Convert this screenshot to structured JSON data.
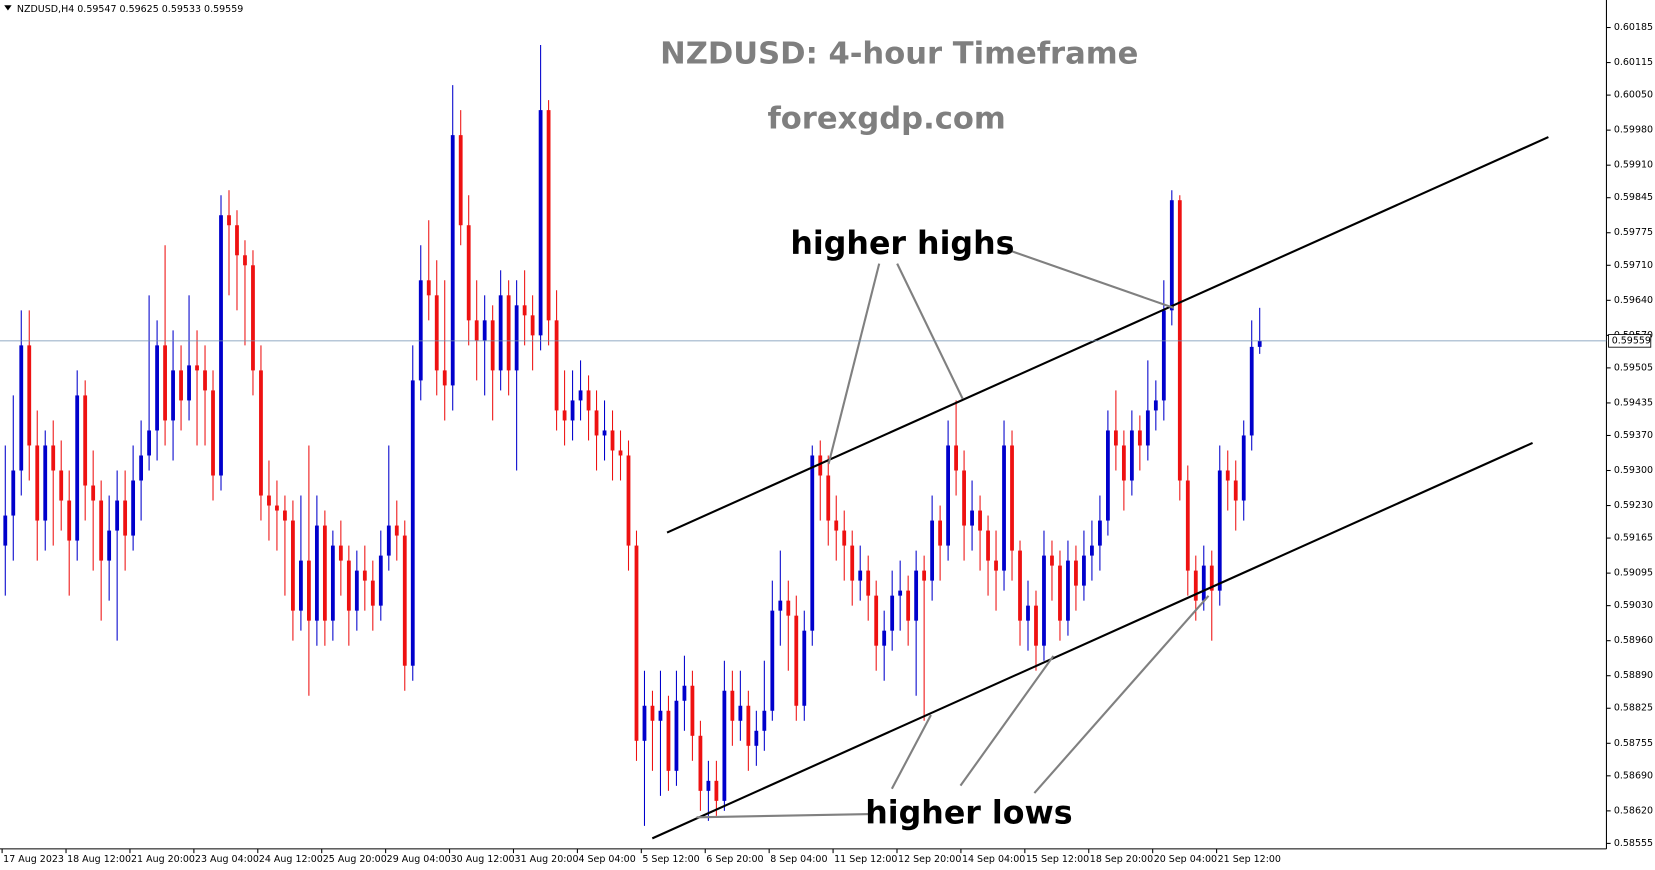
{
  "chart_data": {
    "type": "candlestick",
    "header": "NZDUSD,H4 0.59547 0.59625 0.59533 0.59559",
    "title": "NZDUSD: 4-hour Timeframe",
    "subtitle": "forexgdp.com",
    "annotations": [
      "higher highs",
      "higher lows"
    ],
    "up_color": "#0000cc",
    "down_color": "#ee1111",
    "ylim": [
      0.58544,
      0.6024
    ],
    "yticks": [
      0.60185,
      0.60115,
      {
        "value": 0.6005,
        "label": "0.60050"
      },
      {
        "value": 0.5998,
        "label": "0.59980"
      },
      {
        "value": 0.5991,
        "label": "0.59910"
      },
      0.59845,
      0.59775,
      {
        "value": 0.5971,
        "label": "0.59710"
      },
      {
        "value": 0.5964,
        "label": "0.59640"
      },
      {
        "value": 0.5957,
        "label": "0.59570"
      },
      0.59505,
      0.59435,
      {
        "value": 0.5937,
        "label": "0.59370"
      },
      {
        "value": 0.593,
        "label": "0.59300"
      },
      {
        "value": 0.5923,
        "label": "0.59230"
      },
      0.59165,
      0.59095,
      {
        "value": 0.5903,
        "label": "0.59030"
      },
      {
        "value": 0.5896,
        "label": "0.58960"
      },
      {
        "value": 0.5889,
        "label": "0.58890"
      },
      0.58825,
      0.58755,
      {
        "value": 0.5869,
        "label": "0.58690"
      },
      {
        "value": 0.5862,
        "label": "0.58620"
      },
      0.58555
    ],
    "current_price": 0.59559,
    "categories": [
      "17 Aug 2023",
      null,
      null,
      null,
      null,
      null,
      null,
      null,
      "18 Aug 12:00",
      null,
      null,
      null,
      null,
      null,
      null,
      null,
      "21 Aug 20:00",
      null,
      null,
      null,
      null,
      null,
      null,
      null,
      "23 Aug 04:00",
      null,
      null,
      null,
      null,
      null,
      null,
      null,
      "24 Aug 12:00",
      null,
      null,
      null,
      null,
      null,
      null,
      null,
      "25 Aug 20:00",
      null,
      null,
      null,
      null,
      null,
      null,
      null,
      "29 Aug 04:00",
      null,
      null,
      null,
      null,
      null,
      null,
      null,
      "30 Aug 12:00",
      null,
      null,
      null,
      null,
      null,
      null,
      null,
      "31 Aug 20:00",
      null,
      null,
      null,
      null,
      null,
      null,
      null,
      "4 Sep 04:00",
      null,
      null,
      null,
      null,
      null,
      null,
      null,
      "5 Sep 12:00",
      null,
      null,
      null,
      null,
      null,
      null,
      null,
      "6 Sep 20:00",
      null,
      null,
      null,
      null,
      null,
      null,
      null,
      "8 Sep 04:00",
      null,
      null,
      null,
      null,
      null,
      null,
      null,
      "11 Sep 12:00",
      null,
      null,
      null,
      null,
      null,
      null,
      null,
      "12 Sep 20:00",
      null,
      null,
      null,
      null,
      null,
      null,
      null,
      "14 Sep 04:00",
      null,
      null,
      null,
      null,
      null,
      null,
      null,
      "15 Sep 12:00",
      null,
      null,
      null,
      null,
      null,
      null,
      null,
      "18 Sep 20:00",
      null,
      null,
      null,
      null,
      null,
      null,
      null,
      "20 Sep 04:00",
      null,
      null,
      null,
      null,
      null,
      null,
      null,
      "21 Sep 12:00",
      null,
      null,
      null,
      null,
      null
    ],
    "candles": [
      [
        0.5915,
        0.5935,
        0.5905,
        0.5921
      ],
      [
        0.5921,
        0.5945,
        0.5912,
        0.593
      ],
      [
        0.593,
        0.5962,
        0.5925,
        0.5955
      ],
      [
        0.5955,
        0.5962,
        0.5928,
        0.5935
      ],
      [
        0.5935,
        0.5942,
        0.5912,
        0.592
      ],
      [
        0.592,
        0.5938,
        0.5914,
        0.5935
      ],
      [
        0.5935,
        0.594,
        0.5915,
        0.593
      ],
      [
        0.593,
        0.5936,
        0.5918,
        0.5924
      ],
      [
        0.5924,
        0.593,
        0.5905,
        0.5916
      ],
      [
        0.5916,
        0.595,
        0.5912,
        0.5945
      ],
      [
        0.5945,
        0.5948,
        0.592,
        0.5927
      ],
      [
        0.5927,
        0.5934,
        0.591,
        0.5924
      ],
      [
        0.5924,
        0.5928,
        0.59,
        0.5912
      ],
      [
        0.5912,
        0.5925,
        0.5904,
        0.5918
      ],
      [
        0.5918,
        0.593,
        0.5896,
        0.5924
      ],
      [
        0.5924,
        0.593,
        0.591,
        0.5917
      ],
      [
        0.5917,
        0.5935,
        0.5914,
        0.5928
      ],
      [
        0.5928,
        0.594,
        0.592,
        0.5933
      ],
      [
        0.5933,
        0.5965,
        0.593,
        0.5938
      ],
      [
        0.5938,
        0.596,
        0.5932,
        0.5955
      ],
      [
        0.5955,
        0.5975,
        0.5935,
        0.594
      ],
      [
        0.594,
        0.5958,
        0.5932,
        0.595
      ],
      [
        0.595,
        0.5955,
        0.5938,
        0.5944
      ],
      [
        0.5944,
        0.5965,
        0.594,
        0.5951
      ],
      [
        0.5951,
        0.5958,
        0.5935,
        0.595
      ],
      [
        0.595,
        0.5955,
        0.5935,
        0.5946
      ],
      [
        0.5946,
        0.595,
        0.5924,
        0.5929
      ],
      [
        0.5929,
        0.5985,
        0.5926,
        0.5981
      ],
      [
        0.5981,
        0.5986,
        0.5965,
        0.5979
      ],
      [
        0.5979,
        0.5982,
        0.5962,
        0.5973
      ],
      [
        0.5973,
        0.5976,
        0.5955,
        0.5971
      ],
      [
        0.5971,
        0.5974,
        0.5945,
        0.595
      ],
      [
        0.595,
        0.5955,
        0.592,
        0.5925
      ],
      [
        0.5925,
        0.5932,
        0.5916,
        0.5923
      ],
      [
        0.5923,
        0.5928,
        0.5914,
        0.5922
      ],
      [
        0.5922,
        0.5925,
        0.5905,
        0.592
      ],
      [
        0.592,
        0.5924,
        0.5896,
        0.5902
      ],
      [
        0.5902,
        0.5925,
        0.5898,
        0.5912
      ],
      [
        0.5912,
        0.5935,
        0.5885,
        0.59
      ],
      [
        0.59,
        0.5925,
        0.5895,
        0.5919
      ],
      [
        0.5919,
        0.5922,
        0.5895,
        0.59
      ],
      [
        0.59,
        0.5918,
        0.5896,
        0.5915
      ],
      [
        0.5915,
        0.592,
        0.5905,
        0.5912
      ],
      [
        0.5912,
        0.5915,
        0.5895,
        0.5902
      ],
      [
        0.5902,
        0.5914,
        0.5898,
        0.591
      ],
      [
        0.591,
        0.5915,
        0.5902,
        0.5908
      ],
      [
        0.5908,
        0.5912,
        0.5898,
        0.5903
      ],
      [
        0.5903,
        0.5918,
        0.59,
        0.5913
      ],
      [
        0.5913,
        0.5935,
        0.591,
        0.5919
      ],
      [
        0.5919,
        0.5924,
        0.5912,
        0.5917
      ],
      [
        0.5917,
        0.592,
        0.5886,
        0.5891
      ],
      [
        0.5891,
        0.5955,
        0.5888,
        0.5948
      ],
      [
        0.5948,
        0.5975,
        0.5944,
        0.5968
      ],
      [
        0.5968,
        0.598,
        0.596,
        0.5965
      ],
      [
        0.5965,
        0.5972,
        0.5945,
        0.595
      ],
      [
        0.595,
        0.5968,
        0.594,
        0.5947
      ],
      [
        0.5947,
        0.6007,
        0.5942,
        0.5997
      ],
      [
        0.5997,
        0.6002,
        0.5975,
        0.5979
      ],
      [
        0.5979,
        0.5985,
        0.5955,
        0.596
      ],
      [
        0.596,
        0.5968,
        0.5948,
        0.5956
      ],
      [
        0.5956,
        0.5965,
        0.5945,
        0.596
      ],
      [
        0.596,
        0.5963,
        0.594,
        0.595
      ],
      [
        0.595,
        0.597,
        0.5946,
        0.5965
      ],
      [
        0.5965,
        0.5968,
        0.5945,
        0.595
      ],
      [
        0.595,
        0.5968,
        0.593,
        0.5963
      ],
      [
        0.5963,
        0.597,
        0.5955,
        0.5961
      ],
      [
        0.5961,
        0.5965,
        0.595,
        0.5957
      ],
      [
        0.5957,
        0.6015,
        0.5954,
        0.6002
      ],
      [
        0.6002,
        0.6004,
        0.5955,
        0.596
      ],
      [
        0.596,
        0.5966,
        0.5938,
        0.5942
      ],
      [
        0.5942,
        0.595,
        0.5935,
        0.594
      ],
      [
        0.594,
        0.595,
        0.5936,
        0.5944
      ],
      [
        0.5944,
        0.5952,
        0.594,
        0.5946
      ],
      [
        0.5946,
        0.5949,
        0.5936,
        0.5942
      ],
      [
        0.5942,
        0.5946,
        0.593,
        0.5937
      ],
      [
        0.5937,
        0.5944,
        0.5932,
        0.5938
      ],
      [
        0.5938,
        0.5942,
        0.5928,
        0.5934
      ],
      [
        0.5934,
        0.5938,
        0.5928,
        0.5933
      ],
      [
        0.5933,
        0.5936,
        0.591,
        0.5915
      ],
      [
        0.5915,
        0.5918,
        0.5872,
        0.5876
      ],
      [
        0.5876,
        0.589,
        0.5859,
        0.5883
      ],
      [
        0.5883,
        0.5886,
        0.587,
        0.588
      ],
      [
        0.588,
        0.589,
        0.5865,
        0.5882
      ],
      [
        0.5882,
        0.5885,
        0.5866,
        0.587
      ],
      [
        0.587,
        0.589,
        0.5867,
        0.5884
      ],
      [
        0.5884,
        0.5893,
        0.5878,
        0.5887
      ],
      [
        0.5887,
        0.589,
        0.5872,
        0.5877
      ],
      [
        0.5877,
        0.588,
        0.5862,
        0.5866
      ],
      [
        0.5866,
        0.5872,
        0.586,
        0.5868
      ],
      [
        0.5868,
        0.5872,
        0.5861,
        0.5864
      ],
      [
        0.5864,
        0.5892,
        0.5862,
        0.5886
      ],
      [
        0.5886,
        0.589,
        0.5875,
        0.588
      ],
      [
        0.588,
        0.589,
        0.5876,
        0.5883
      ],
      [
        0.5883,
        0.5886,
        0.587,
        0.5875
      ],
      [
        0.5875,
        0.5882,
        0.5871,
        0.5878
      ],
      [
        0.5878,
        0.5892,
        0.5874,
        0.5882
      ],
      [
        0.5882,
        0.5908,
        0.588,
        0.5902
      ],
      [
        0.5902,
        0.5914,
        0.5895,
        0.5904
      ],
      [
        0.5904,
        0.5908,
        0.589,
        0.5901
      ],
      [
        0.5901,
        0.5905,
        0.588,
        0.5883
      ],
      [
        0.5883,
        0.5902,
        0.588,
        0.5898
      ],
      [
        0.5898,
        0.5935,
        0.5895,
        0.5933
      ],
      [
        0.5933,
        0.5936,
        0.592,
        0.5929
      ],
      [
        0.5929,
        0.5933,
        0.5915,
        0.592
      ],
      [
        0.592,
        0.5925,
        0.5912,
        0.5918
      ],
      [
        0.5918,
        0.5922,
        0.5908,
        0.5915
      ],
      [
        0.5915,
        0.5918,
        0.5903,
        0.5908
      ],
      [
        0.5908,
        0.5915,
        0.5904,
        0.591
      ],
      [
        0.591,
        0.5913,
        0.59,
        0.5905
      ],
      [
        0.5905,
        0.5908,
        0.589,
        0.5895
      ],
      [
        0.5895,
        0.5902,
        0.5888,
        0.5898
      ],
      [
        0.5898,
        0.591,
        0.5894,
        0.5905
      ],
      [
        0.5905,
        0.5912,
        0.5898,
        0.5906
      ],
      [
        0.5906,
        0.5909,
        0.5895,
        0.59
      ],
      [
        0.59,
        0.5914,
        0.5885,
        0.591
      ],
      [
        0.591,
        0.5913,
        0.588,
        0.5908
      ],
      [
        0.5908,
        0.5925,
        0.5904,
        0.592
      ],
      [
        0.592,
        0.5923,
        0.5908,
        0.5915
      ],
      [
        0.5915,
        0.594,
        0.5912,
        0.5935
      ],
      [
        0.5935,
        0.5944,
        0.5925,
        0.593
      ],
      [
        0.593,
        0.5934,
        0.5912,
        0.5919
      ],
      [
        0.5919,
        0.5928,
        0.5914,
        0.5922
      ],
      [
        0.5922,
        0.5925,
        0.591,
        0.5918
      ],
      [
        0.5918,
        0.5921,
        0.5905,
        0.5912
      ],
      [
        0.5912,
        0.5918,
        0.5902,
        0.591
      ],
      [
        0.591,
        0.594,
        0.5906,
        0.5935
      ],
      [
        0.5935,
        0.5938,
        0.5908,
        0.5914
      ],
      [
        0.5914,
        0.5916,
        0.5895,
        0.59
      ],
      [
        0.59,
        0.5908,
        0.5894,
        0.5903
      ],
      [
        0.5903,
        0.5906,
        0.589,
        0.5895
      ],
      [
        0.5895,
        0.5918,
        0.5892,
        0.5913
      ],
      [
        0.5913,
        0.5916,
        0.5904,
        0.5911
      ],
      [
        0.5911,
        0.5914,
        0.5896,
        0.59
      ],
      [
        0.59,
        0.5916,
        0.5897,
        0.5912
      ],
      [
        0.5912,
        0.5915,
        0.5902,
        0.5907
      ],
      [
        0.5907,
        0.5918,
        0.5904,
        0.5913
      ],
      [
        0.5913,
        0.592,
        0.5908,
        0.5915
      ],
      [
        0.5915,
        0.5925,
        0.591,
        0.592
      ],
      [
        0.592,
        0.5942,
        0.5917,
        0.5938
      ],
      [
        0.5938,
        0.5946,
        0.593,
        0.5935
      ],
      [
        0.5935,
        0.5938,
        0.5922,
        0.5928
      ],
      [
        0.5928,
        0.5942,
        0.5925,
        0.5938
      ],
      [
        0.5938,
        0.5941,
        0.593,
        0.5935
      ],
      [
        0.5935,
        0.5952,
        0.5932,
        0.5942
      ],
      [
        0.5942,
        0.5948,
        0.5938,
        0.5944
      ],
      [
        0.5944,
        0.5968,
        0.594,
        0.5962
      ],
      [
        0.5962,
        0.5986,
        0.5959,
        0.5984
      ],
      [
        0.5984,
        0.5985,
        0.5924,
        0.5928
      ],
      [
        0.5928,
        0.5931,
        0.5905,
        0.591
      ],
      [
        0.591,
        0.5913,
        0.59,
        0.5904
      ],
      [
        0.5904,
        0.5915,
        0.5902,
        0.5911
      ],
      [
        0.5911,
        0.5914,
        0.5896,
        0.5906
      ],
      [
        0.5906,
        0.5935,
        0.5903,
        0.593
      ],
      [
        0.593,
        0.5934,
        0.5922,
        0.5928
      ],
      [
        0.5928,
        0.5932,
        0.5918,
        0.5924
      ],
      [
        0.5924,
        0.594,
        0.592,
        0.5937
      ],
      [
        0.5937,
        0.596,
        0.5934,
        0.59547
      ],
      [
        0.59547,
        0.59625,
        0.59533,
        0.59559
      ]
    ]
  }
}
